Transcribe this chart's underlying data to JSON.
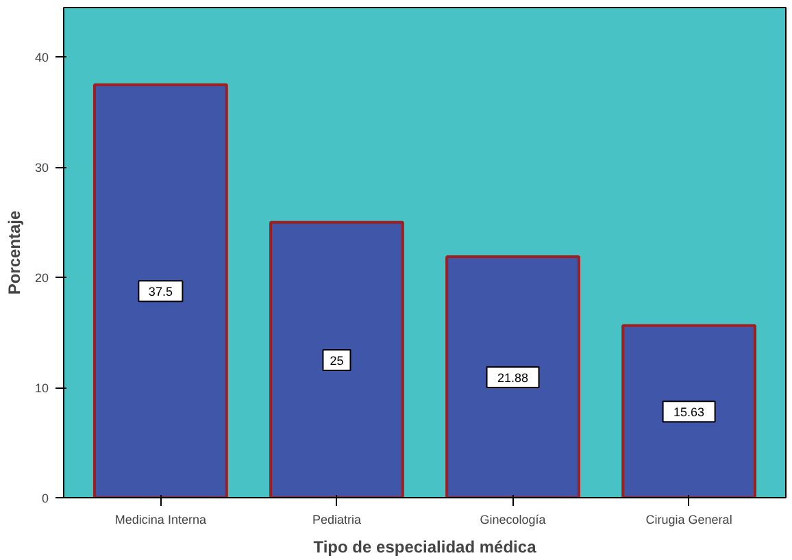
{
  "chart_data": {
    "type": "bar",
    "xlabel": "Tipo de especialidad médica",
    "ylabel": "Porcentaje",
    "categories": [
      "Medicina Interna",
      "Pediatria",
      "Ginecología",
      "Cirugia General"
    ],
    "values": [
      37.5,
      25,
      21.88,
      15.63
    ],
    "color": "#3f56a9",
    "value_labels": [
      "37.5",
      "25",
      "21.88",
      "15.63"
    ],
    "ylim": [
      0,
      44.5
    ],
    "yticks": [
      0,
      10,
      20,
      30,
      40
    ],
    "grid": false
  }
}
